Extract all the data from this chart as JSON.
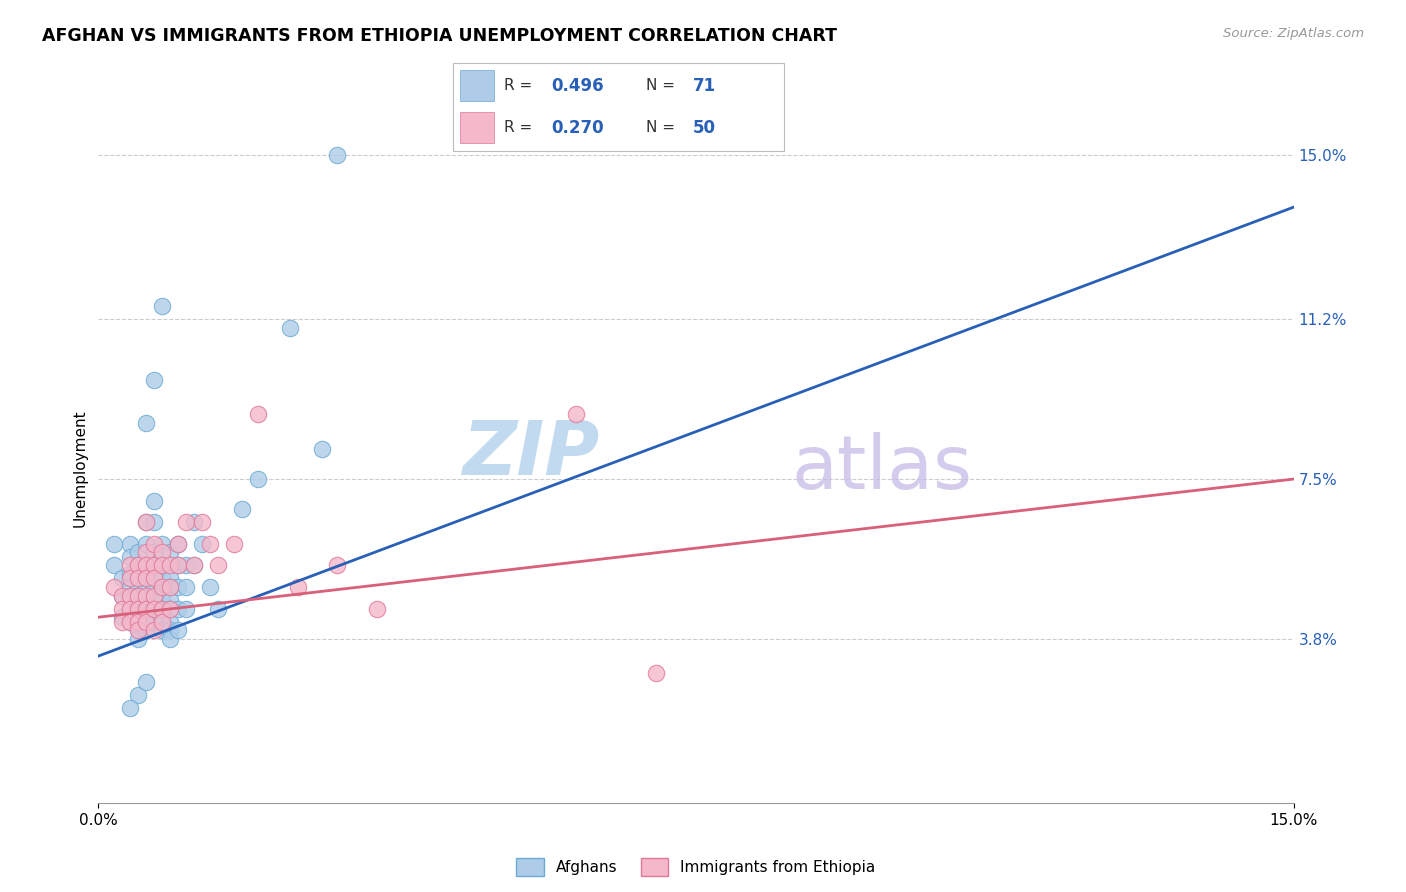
{
  "title": "AFGHAN VS IMMIGRANTS FROM ETHIOPIA UNEMPLOYMENT CORRELATION CHART",
  "source": "Source: ZipAtlas.com",
  "ylabel": "Unemployment",
  "x_min": 0.0,
  "x_max": 0.15,
  "y_min": 0.0,
  "y_max": 0.155,
  "y_tick_labels_right": [
    "3.8%",
    "7.5%",
    "11.2%",
    "15.0%"
  ],
  "y_tick_values_right": [
    0.038,
    0.075,
    0.112,
    0.15
  ],
  "afghans_color": "#aecce8",
  "afghans_edge_color": "#6aaad4",
  "ethiopia_color": "#f4b8ca",
  "ethiopia_edge_color": "#e07898",
  "blue_line_color": "#2860b8",
  "pink_line_color": "#d8607a",
  "watermark_color": "#c5dff0",
  "watermark_color2": "#d0c8e8",
  "blue_line_x": [
    0.0,
    0.15
  ],
  "blue_line_y": [
    0.034,
    0.138
  ],
  "pink_line_x": [
    0.0,
    0.15
  ],
  "pink_line_y": [
    0.043,
    0.075
  ],
  "afghans_scatter": [
    [
      0.002,
      0.055
    ],
    [
      0.002,
      0.06
    ],
    [
      0.003,
      0.052
    ],
    [
      0.003,
      0.048
    ],
    [
      0.003,
      0.043
    ],
    [
      0.004,
      0.06
    ],
    [
      0.004,
      0.057
    ],
    [
      0.004,
      0.053
    ],
    [
      0.004,
      0.05
    ],
    [
      0.004,
      0.048
    ],
    [
      0.004,
      0.045
    ],
    [
      0.004,
      0.042
    ],
    [
      0.005,
      0.058
    ],
    [
      0.005,
      0.055
    ],
    [
      0.005,
      0.053
    ],
    [
      0.005,
      0.05
    ],
    [
      0.005,
      0.048
    ],
    [
      0.005,
      0.045
    ],
    [
      0.005,
      0.043
    ],
    [
      0.005,
      0.04
    ],
    [
      0.005,
      0.038
    ],
    [
      0.006,
      0.065
    ],
    [
      0.006,
      0.06
    ],
    [
      0.006,
      0.055
    ],
    [
      0.006,
      0.052
    ],
    [
      0.006,
      0.05
    ],
    [
      0.006,
      0.047
    ],
    [
      0.006,
      0.045
    ],
    [
      0.006,
      0.042
    ],
    [
      0.006,
      0.04
    ],
    [
      0.007,
      0.07
    ],
    [
      0.007,
      0.065
    ],
    [
      0.007,
      0.058
    ],
    [
      0.007,
      0.055
    ],
    [
      0.007,
      0.052
    ],
    [
      0.007,
      0.05
    ],
    [
      0.007,
      0.047
    ],
    [
      0.007,
      0.045
    ],
    [
      0.007,
      0.042
    ],
    [
      0.008,
      0.06
    ],
    [
      0.008,
      0.055
    ],
    [
      0.008,
      0.052
    ],
    [
      0.008,
      0.05
    ],
    [
      0.008,
      0.047
    ],
    [
      0.008,
      0.045
    ],
    [
      0.008,
      0.042
    ],
    [
      0.008,
      0.04
    ],
    [
      0.009,
      0.058
    ],
    [
      0.009,
      0.055
    ],
    [
      0.009,
      0.052
    ],
    [
      0.009,
      0.05
    ],
    [
      0.009,
      0.047
    ],
    [
      0.009,
      0.045
    ],
    [
      0.009,
      0.042
    ],
    [
      0.009,
      0.04
    ],
    [
      0.009,
      0.038
    ],
    [
      0.01,
      0.06
    ],
    [
      0.01,
      0.055
    ],
    [
      0.01,
      0.05
    ],
    [
      0.01,
      0.045
    ],
    [
      0.01,
      0.04
    ],
    [
      0.011,
      0.055
    ],
    [
      0.011,
      0.05
    ],
    [
      0.011,
      0.045
    ],
    [
      0.012,
      0.065
    ],
    [
      0.012,
      0.055
    ],
    [
      0.013,
      0.06
    ],
    [
      0.014,
      0.05
    ],
    [
      0.015,
      0.045
    ],
    [
      0.018,
      0.068
    ],
    [
      0.02,
      0.075
    ],
    [
      0.024,
      0.11
    ],
    [
      0.028,
      0.082
    ],
    [
      0.006,
      0.088
    ],
    [
      0.007,
      0.098
    ],
    [
      0.008,
      0.115
    ],
    [
      0.005,
      0.025
    ],
    [
      0.006,
      0.028
    ],
    [
      0.004,
      0.022
    ],
    [
      0.03,
      0.15
    ]
  ],
  "ethiopia_scatter": [
    [
      0.002,
      0.05
    ],
    [
      0.003,
      0.048
    ],
    [
      0.003,
      0.045
    ],
    [
      0.003,
      0.042
    ],
    [
      0.004,
      0.055
    ],
    [
      0.004,
      0.052
    ],
    [
      0.004,
      0.048
    ],
    [
      0.004,
      0.045
    ],
    [
      0.004,
      0.042
    ],
    [
      0.005,
      0.055
    ],
    [
      0.005,
      0.052
    ],
    [
      0.005,
      0.048
    ],
    [
      0.005,
      0.045
    ],
    [
      0.005,
      0.042
    ],
    [
      0.005,
      0.04
    ],
    [
      0.006,
      0.065
    ],
    [
      0.006,
      0.058
    ],
    [
      0.006,
      0.055
    ],
    [
      0.006,
      0.052
    ],
    [
      0.006,
      0.048
    ],
    [
      0.006,
      0.045
    ],
    [
      0.006,
      0.042
    ],
    [
      0.007,
      0.06
    ],
    [
      0.007,
      0.055
    ],
    [
      0.007,
      0.052
    ],
    [
      0.007,
      0.048
    ],
    [
      0.007,
      0.045
    ],
    [
      0.007,
      0.04
    ],
    [
      0.008,
      0.058
    ],
    [
      0.008,
      0.055
    ],
    [
      0.008,
      0.05
    ],
    [
      0.008,
      0.045
    ],
    [
      0.008,
      0.042
    ],
    [
      0.009,
      0.055
    ],
    [
      0.009,
      0.05
    ],
    [
      0.009,
      0.045
    ],
    [
      0.01,
      0.06
    ],
    [
      0.01,
      0.055
    ],
    [
      0.011,
      0.065
    ],
    [
      0.012,
      0.055
    ],
    [
      0.013,
      0.065
    ],
    [
      0.014,
      0.06
    ],
    [
      0.015,
      0.055
    ],
    [
      0.017,
      0.06
    ],
    [
      0.02,
      0.09
    ],
    [
      0.025,
      0.05
    ],
    [
      0.03,
      0.055
    ],
    [
      0.035,
      0.045
    ],
    [
      0.06,
      0.09
    ],
    [
      0.07,
      0.03
    ]
  ]
}
